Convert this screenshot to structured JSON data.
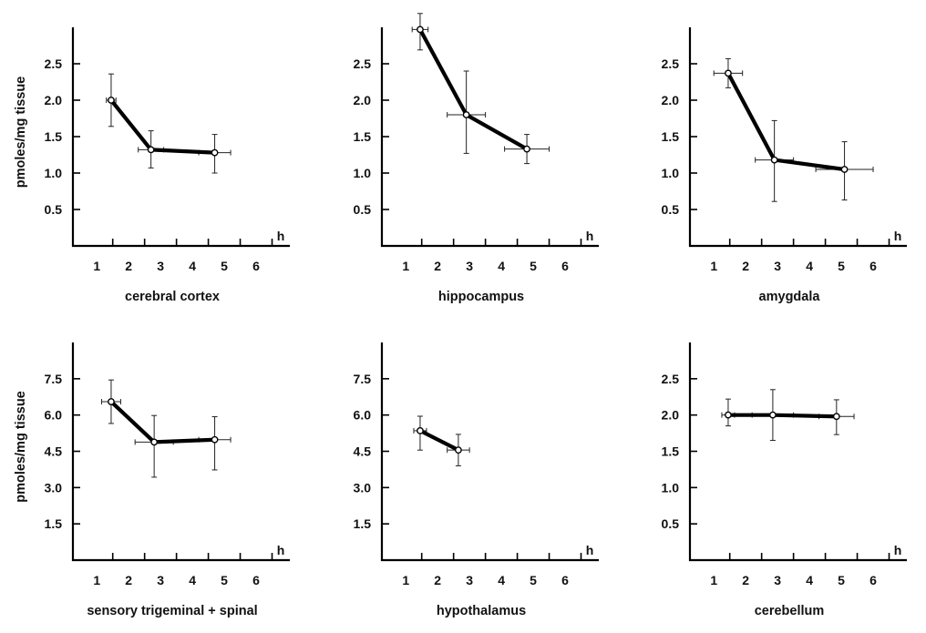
{
  "chart_data": [
    {
      "type": "line",
      "title": "cerebral cortex",
      "ylabel": "pmoles/mg tissue",
      "xlabel": "h",
      "xticks": [
        "1",
        "2",
        "3",
        "4",
        "5",
        "6"
      ],
      "yticks": [
        "0.5",
        "1.0",
        "1.5",
        "2.0",
        "2.5"
      ],
      "xlim": [
        0.25,
        6.6
      ],
      "ylim": [
        0,
        3.0
      ],
      "series": [
        {
          "points": [
            {
              "x": 1.45,
              "y": 2.0,
              "xerr": 0.15,
              "yerr_low": 0.36,
              "yerr_high": 0.36
            },
            {
              "x": 2.7,
              "y": 1.32,
              "xerr": 0.4,
              "yerr_low": 0.25,
              "yerr_high": 0.26
            },
            {
              "x": 4.7,
              "y": 1.28,
              "xerr": 0.5,
              "yerr_low": 0.28,
              "yerr_high": 0.25
            }
          ]
        }
      ]
    },
    {
      "type": "line",
      "title": "hippocampus",
      "ylabel": "",
      "xlabel": "h",
      "xticks": [
        "1",
        "2",
        "3",
        "4",
        "5",
        "6"
      ],
      "yticks": [
        "0.5",
        "1.0",
        "1.5",
        "2.0",
        "2.5"
      ],
      "xlim": [
        0.25,
        6.6
      ],
      "ylim": [
        0,
        3.0
      ],
      "series": [
        {
          "points": [
            {
              "x": 1.45,
              "y": 2.97,
              "xerr": 0.25,
              "yerr_low": 0.28,
              "yerr_high": 0.22
            },
            {
              "x": 2.9,
              "y": 1.8,
              "xerr": 0.6,
              "yerr_low": 0.53,
              "yerr_high": 0.6
            },
            {
              "x": 4.8,
              "y": 1.33,
              "xerr": 0.7,
              "yerr_low": 0.2,
              "yerr_high": 0.2
            }
          ]
        }
      ]
    },
    {
      "type": "line",
      "title": "amygdala",
      "ylabel": "",
      "xlabel": "h",
      "xticks": [
        "1",
        "2",
        "3",
        "4",
        "5",
        "6"
      ],
      "yticks": [
        "0.5",
        "1.0",
        "1.5",
        "2.0",
        "2.5"
      ],
      "xlim": [
        0.25,
        6.6
      ],
      "ylim": [
        0,
        3.0
      ],
      "series": [
        {
          "points": [
            {
              "x": 1.45,
              "y": 2.37,
              "xerr": 0.45,
              "yerr_low": 0.2,
              "yerr_high": 0.2
            },
            {
              "x": 2.9,
              "y": 1.18,
              "xerr": 0.6,
              "yerr_low": 0.57,
              "yerr_high": 0.54
            },
            {
              "x": 5.1,
              "y": 1.05,
              "xerr": 0.9,
              "yerr_low": 0.42,
              "yerr_high": 0.38
            }
          ]
        }
      ]
    },
    {
      "type": "line",
      "title": "sensory trigeminal + spinal",
      "ylabel": "pmoles/mg tissue",
      "xlabel": "h",
      "xticks": [
        "1",
        "2",
        "3",
        "4",
        "5",
        "6"
      ],
      "yticks": [
        "1.5",
        "3.0",
        "4.5",
        "6.0",
        "7.5"
      ],
      "xlim": [
        0.25,
        6.6
      ],
      "ylim": [
        0,
        9.0
      ],
      "series": [
        {
          "points": [
            {
              "x": 1.45,
              "y": 6.55,
              "xerr": 0.3,
              "yerr_low": 0.9,
              "yerr_high": 0.9
            },
            {
              "x": 2.8,
              "y": 4.88,
              "xerr": 0.6,
              "yerr_low": 1.45,
              "yerr_high": 1.1
            },
            {
              "x": 4.7,
              "y": 4.98,
              "xerr": 0.5,
              "yerr_low": 1.25,
              "yerr_high": 0.95
            }
          ]
        }
      ]
    },
    {
      "type": "line",
      "title": "hypothalamus",
      "ylabel": "",
      "xlabel": "h",
      "xticks": [
        "1",
        "2",
        "3",
        "4",
        "5",
        "6"
      ],
      "yticks": [
        "1.5",
        "3.0",
        "4.5",
        "6.0",
        "7.5"
      ],
      "xlim": [
        0.25,
        6.6
      ],
      "ylim": [
        0,
        9.0
      ],
      "series": [
        {
          "points": [
            {
              "x": 1.45,
              "y": 5.35,
              "xerr": 0.2,
              "yerr_low": 0.8,
              "yerr_high": 0.6
            },
            {
              "x": 2.65,
              "y": 4.55,
              "xerr": 0.35,
              "yerr_low": 0.65,
              "yerr_high": 0.65
            }
          ]
        }
      ]
    },
    {
      "type": "line",
      "title": "cerebellum",
      "ylabel": "",
      "xlabel": "h",
      "xticks": [
        "1",
        "2",
        "3",
        "4",
        "5",
        "6"
      ],
      "yticks": [
        "0.5",
        "1.0",
        "1.5",
        "2.0",
        "2.5"
      ],
      "xlim": [
        0.25,
        6.6
      ],
      "ylim": [
        0,
        3.0
      ],
      "series": [
        {
          "points": [
            {
              "x": 1.45,
              "y": 2.0,
              "xerr": 0.2,
              "yerr_low": 0.15,
              "yerr_high": 0.22
            },
            {
              "x": 2.85,
              "y": 2.0,
              "xerr": 0.65,
              "yerr_low": 0.35,
              "yerr_high": 0.35
            },
            {
              "x": 4.85,
              "y": 1.98,
              "xerr": 0.55,
              "yerr_low": 0.25,
              "yerr_high": 0.23
            }
          ]
        }
      ]
    }
  ]
}
